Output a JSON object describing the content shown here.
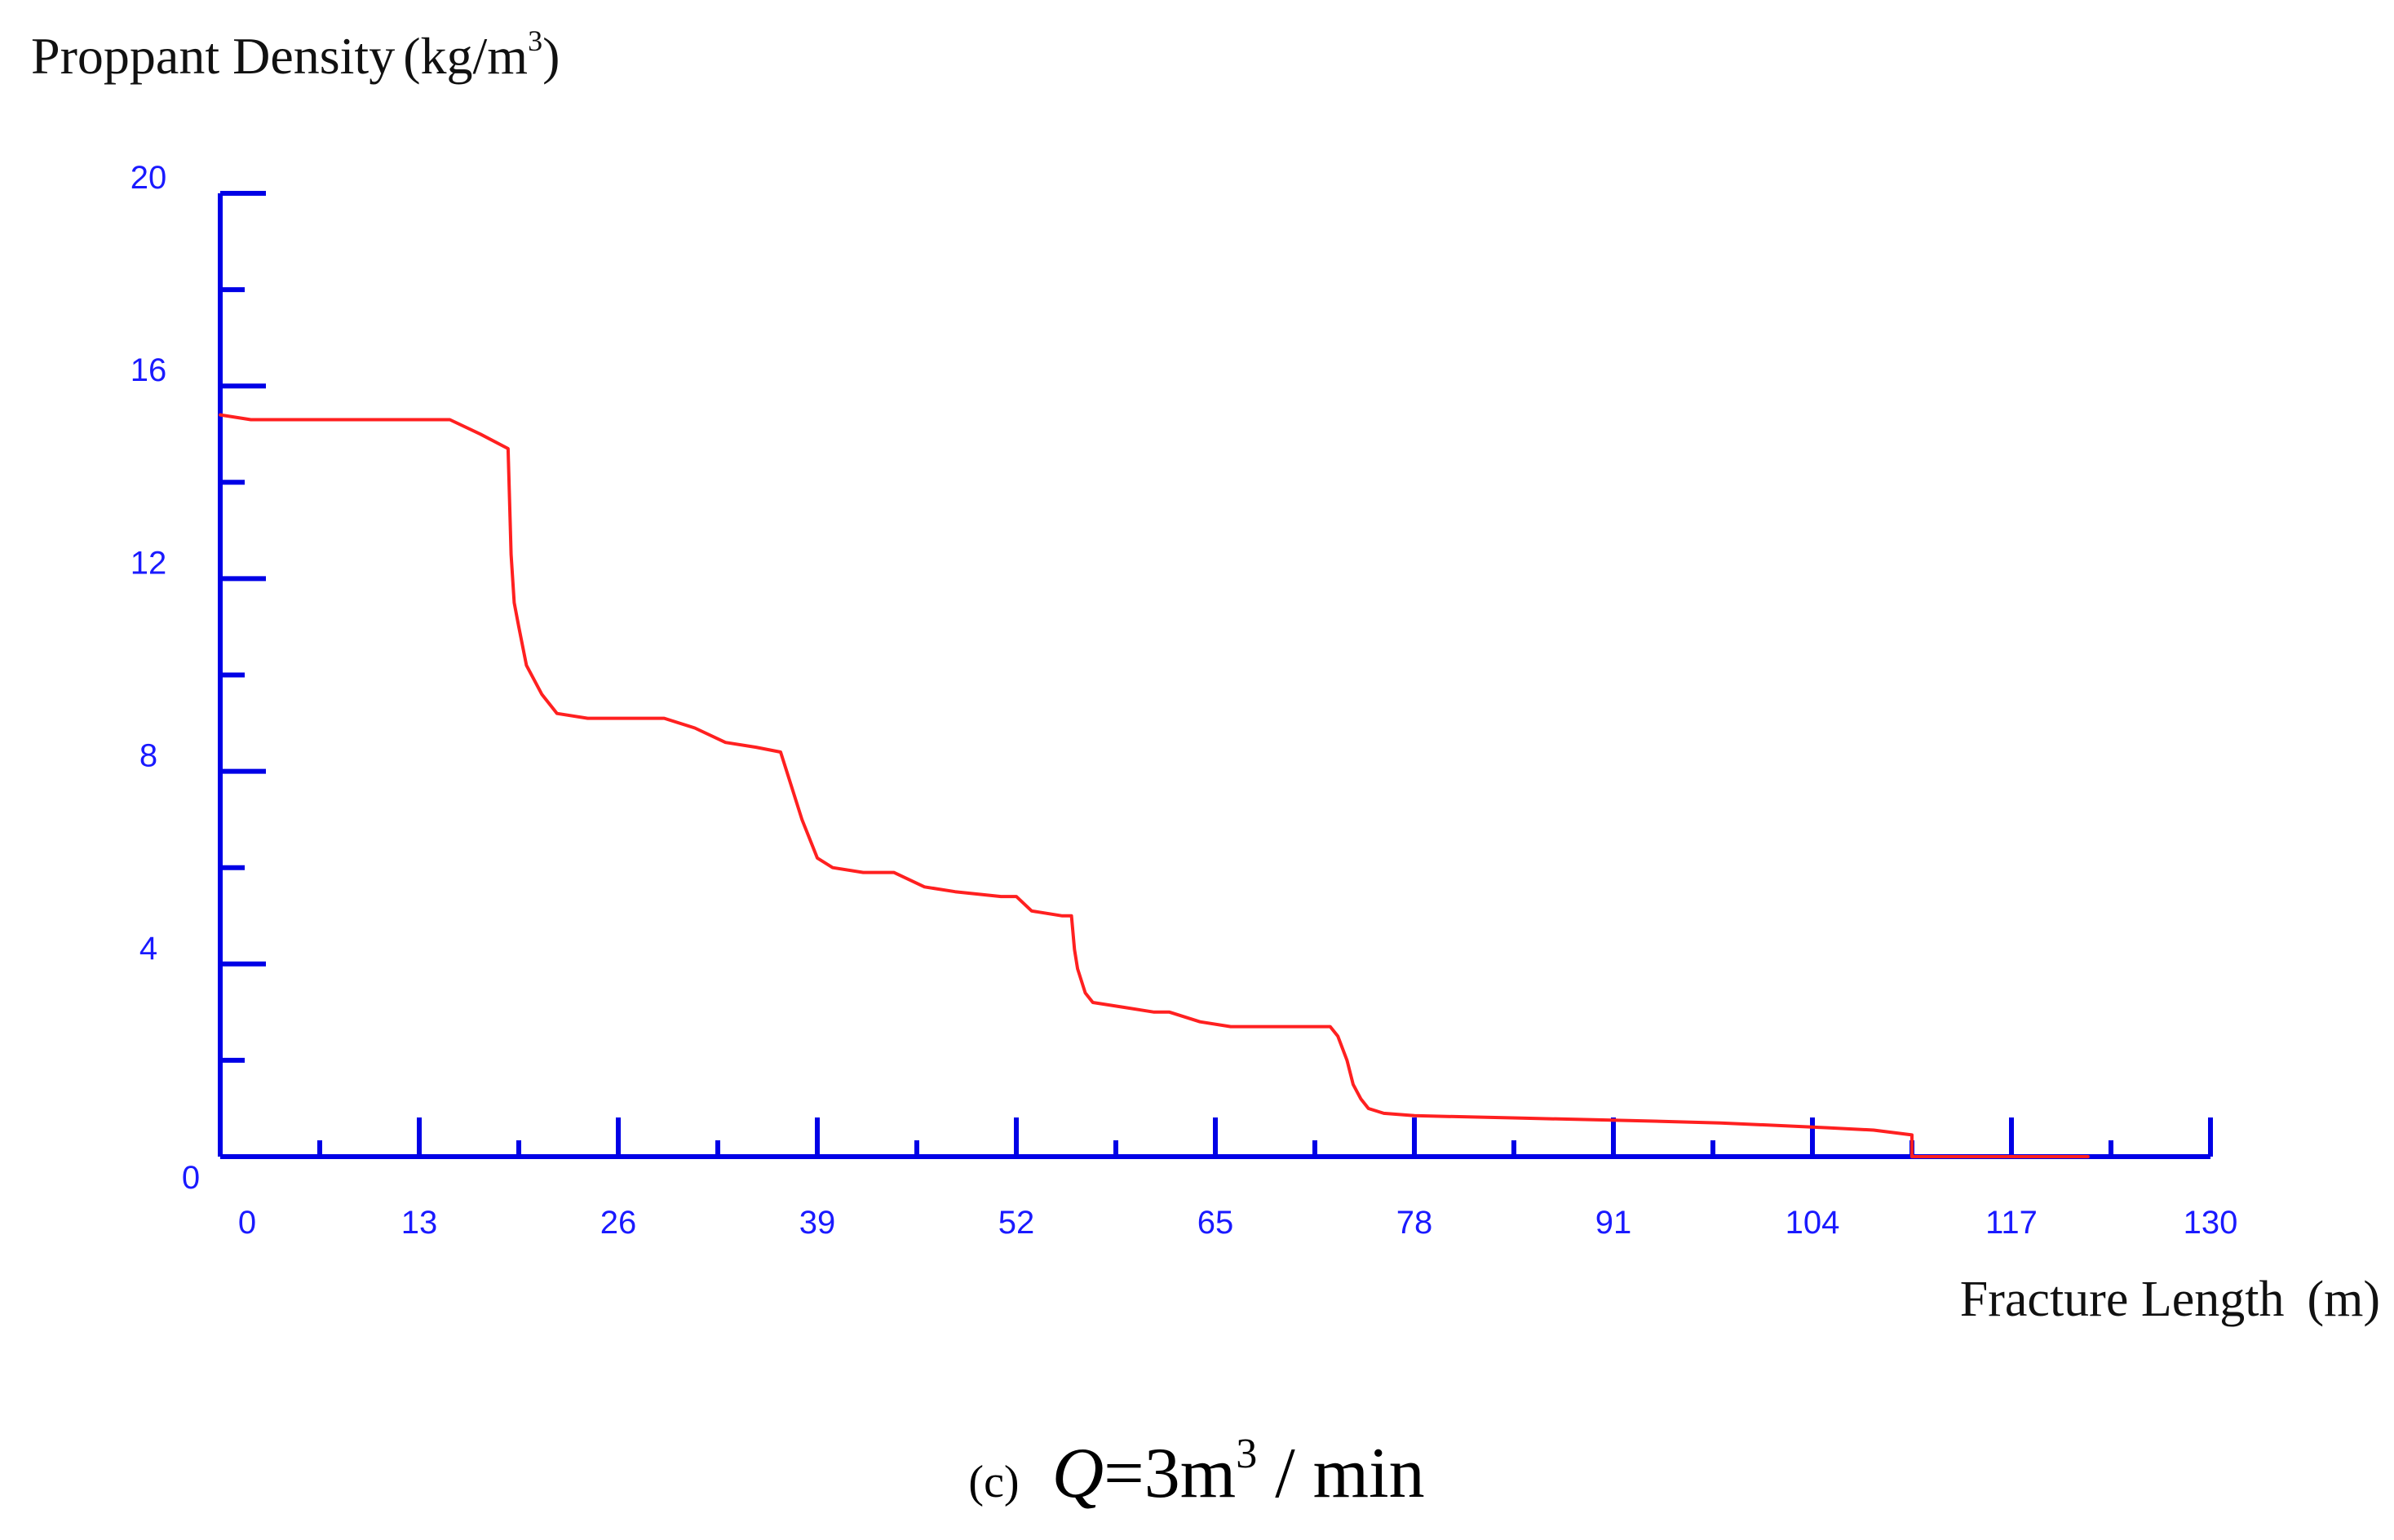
{
  "chart_data": {
    "type": "line",
    "ylabel": "Proppant Density",
    "yunit_prefix": "kg/m",
    "yunit_sup": "3",
    "xlabel": "Fracture Length",
    "xunit": "m",
    "caption": {
      "prefix": "(c)",
      "var": "Q",
      "rest": "=3m",
      "sup": "3",
      "suffix": " / min"
    },
    "xlim": [
      0,
      130
    ],
    "ylim": [
      0,
      20
    ],
    "xticks": [
      "0",
      "13",
      "26",
      "39",
      "52",
      "65",
      "78",
      "91",
      "104",
      "117",
      "130"
    ],
    "yticks": [
      "20",
      "16",
      "12",
      "8",
      "4",
      "0"
    ],
    "xtick_values": [
      0,
      13,
      26,
      39,
      52,
      65,
      78,
      91,
      104,
      117,
      130
    ],
    "ytick_values": [
      20,
      16,
      12,
      8,
      4,
      0
    ],
    "axis_color": "#0000e6",
    "series": [
      {
        "color": "#ff2020",
        "x": [
          0,
          2,
          8,
          15,
          17,
          18.8,
          19.0,
          19.2,
          19.5,
          20,
          21,
          22,
          24,
          27,
          29,
          31,
          33,
          35,
          36.6,
          37,
          38,
          39,
          40,
          42,
          44,
          46,
          48,
          51,
          52,
          53,
          55,
          55.6,
          55.8,
          56.0,
          56.5,
          57,
          59,
          61,
          62,
          64,
          66,
          69,
          72.5,
          73,
          73.6,
          74,
          74.5,
          75,
          76,
          78,
          85,
          92,
          98,
          105,
          108,
          110.5,
          110.5,
          122
        ],
        "y": [
          15.4,
          15.3,
          15.3,
          15.3,
          15.0,
          14.7,
          12.5,
          11.5,
          11.0,
          10.2,
          9.6,
          9.2,
          9.1,
          9.1,
          9.1,
          8.9,
          8.6,
          8.5,
          8.4,
          8.0,
          7.0,
          6.2,
          6.0,
          5.9,
          5.9,
          5.6,
          5.5,
          5.4,
          5.4,
          5.1,
          5.0,
          5.0,
          4.3,
          3.9,
          3.4,
          3.2,
          3.1,
          3.0,
          3.0,
          2.8,
          2.7,
          2.7,
          2.7,
          2.5,
          2.0,
          1.5,
          1.2,
          1.0,
          0.9,
          0.85,
          0.8,
          0.75,
          0.7,
          0.6,
          0.55,
          0.45,
          0.0,
          0.0
        ]
      }
    ]
  }
}
